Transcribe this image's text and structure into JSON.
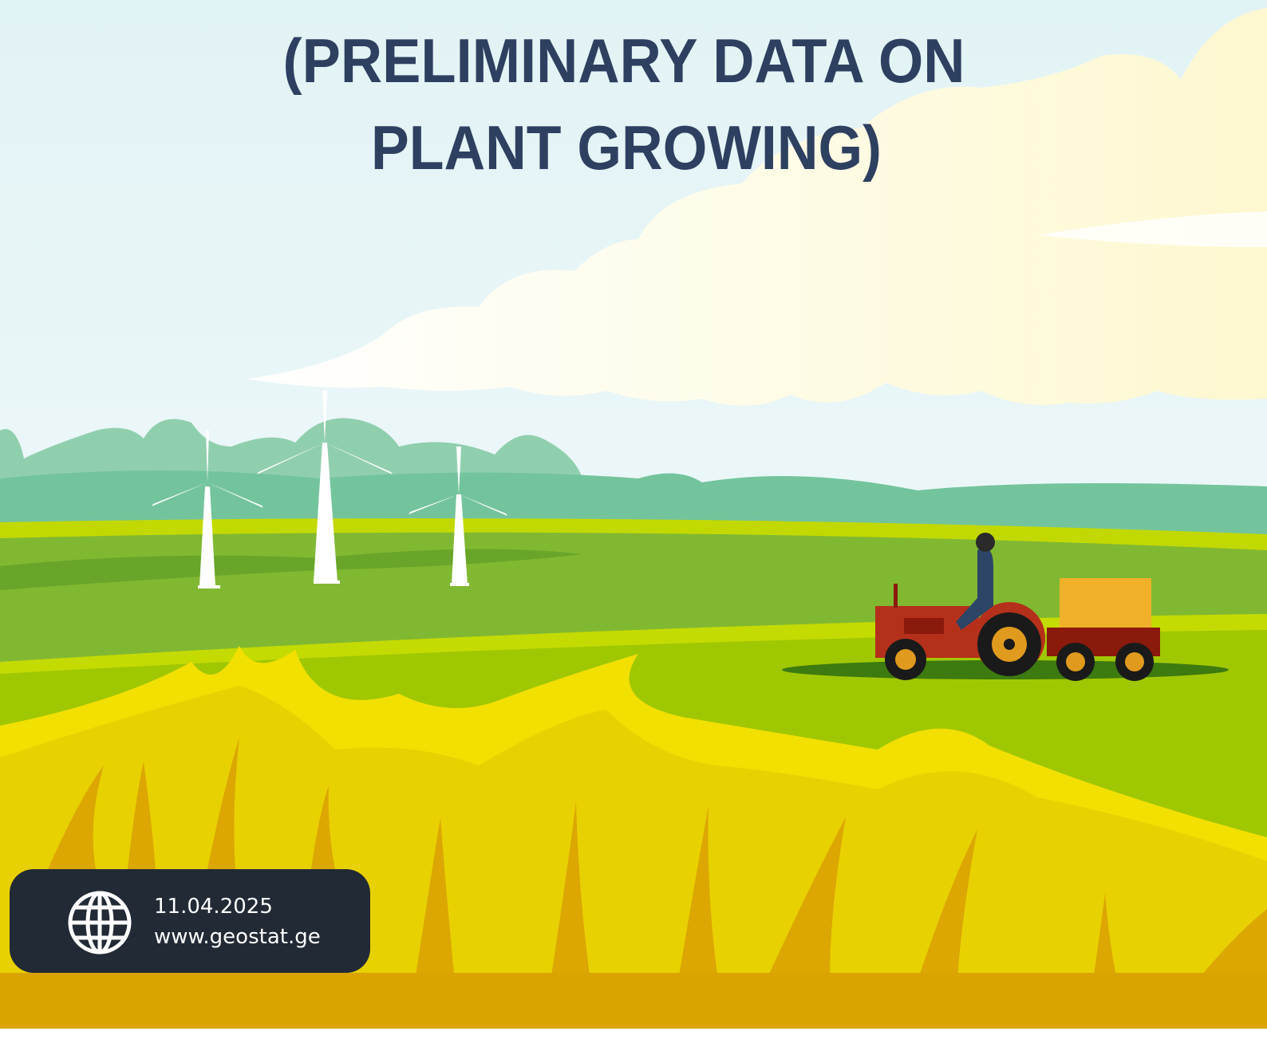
{
  "title": {
    "line1": "(PRELIMINARY DATA ON",
    "line2": "PLANT GROWING)"
  },
  "footer": {
    "date": "11.04.2025",
    "website": "www.geostat.ge"
  }
}
